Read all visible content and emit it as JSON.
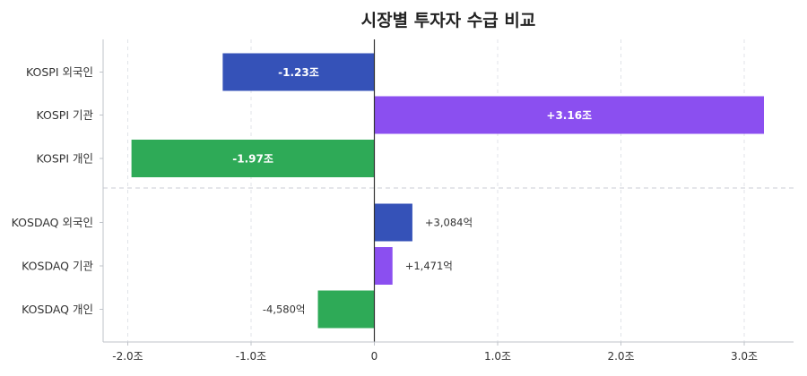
{
  "chart_data": {
    "type": "bar",
    "orientation": "horizontal",
    "title": "시장별 투자자 수급 비교",
    "xlabel": "",
    "ylabel": "",
    "xlim": [
      -2.2,
      3.4
    ],
    "grid": true,
    "x_ticks": [
      {
        "value": -2.0,
        "label": "-2.0조"
      },
      {
        "value": -1.0,
        "label": "-1.0조"
      },
      {
        "value": 0,
        "label": "0"
      },
      {
        "value": 1.0,
        "label": "1.0조"
      },
      {
        "value": 2.0,
        "label": "2.0조"
      },
      {
        "value": 3.0,
        "label": "3.0조"
      }
    ],
    "bars": [
      {
        "category": "KOSPI 외국인",
        "value": -1.23,
        "label": "-1.23조",
        "label_inside": true,
        "color": "#3552b8"
      },
      {
        "category": "KOSPI 기관",
        "value": 3.16,
        "label": "+3.16조",
        "label_inside": true,
        "color": "#8b4ff0"
      },
      {
        "category": "KOSPI 개인",
        "value": -1.97,
        "label": "-1.97조",
        "label_inside": true,
        "color": "#2eaa57"
      },
      {
        "category": "KOSDAQ 외국인",
        "value": 0.3084,
        "label": "+3,084억",
        "label_inside": false,
        "color": "#3552b8"
      },
      {
        "category": "KOSDAQ 기관",
        "value": 0.1471,
        "label": "+1,471억",
        "label_inside": false,
        "color": "#8b4ff0"
      },
      {
        "category": "KOSDAQ 개인",
        "value": -0.458,
        "label": "-4,580억",
        "label_inside": false,
        "color": "#2eaa57"
      }
    ],
    "group_separator_after": 2
  }
}
